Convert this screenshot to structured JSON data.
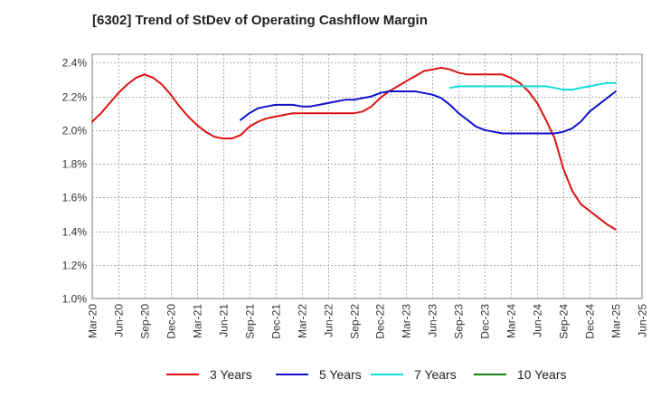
{
  "chart_data": {
    "type": "line",
    "title": "[6302]  Trend of StDev of Operating Cashflow Margin",
    "xlabel": "",
    "ylabel": "",
    "x_tick_labels": [
      "Mar-20",
      "Jun-20",
      "Sep-20",
      "Dec-20",
      "Mar-21",
      "Jun-21",
      "Sep-21",
      "Dec-21",
      "Mar-22",
      "Jun-22",
      "Sep-22",
      "Dec-22",
      "Mar-23",
      "Jun-23",
      "Sep-23",
      "Dec-23",
      "Mar-24",
      "Jun-24",
      "Sep-24",
      "Dec-24",
      "Mar-25",
      "Jun-25"
    ],
    "y_tick_labels": [
      "1.0%",
      "1.2%",
      "1.4%",
      "1.6%",
      "1.8%",
      "2.0%",
      "2.2%",
      "2.4%"
    ],
    "ylim": [
      1.0,
      2.45
    ],
    "y_ticks": [
      1.0,
      1.2,
      1.4,
      1.6,
      1.8,
      2.0,
      2.2,
      2.4
    ],
    "grid": true,
    "legend_position": "bottom",
    "series": [
      {
        "name": "3 Years",
        "color": "#dd1111",
        "points": [
          [
            "Mar-20",
            2.05
          ],
          [
            "Apr-20",
            2.1
          ],
          [
            "May-20",
            2.16
          ],
          [
            "Jun-20",
            2.22
          ],
          [
            "Jul-20",
            2.27
          ],
          [
            "Aug-20",
            2.31
          ],
          [
            "Sep-20",
            2.33
          ],
          [
            "Oct-20",
            2.31
          ],
          [
            "Nov-20",
            2.27
          ],
          [
            "Dec-20",
            2.21
          ],
          [
            "Jan-21",
            2.14
          ],
          [
            "Feb-21",
            2.08
          ],
          [
            "Mar-21",
            2.03
          ],
          [
            "Apr-21",
            1.99
          ],
          [
            "May-21",
            1.96
          ],
          [
            "Jun-21",
            1.95
          ],
          [
            "Jul-21",
            1.95
          ],
          [
            "Aug-21",
            1.97
          ],
          [
            "Sep-21",
            2.02
          ],
          [
            "Oct-21",
            2.05
          ],
          [
            "Nov-21",
            2.07
          ],
          [
            "Dec-21",
            2.08
          ],
          [
            "Jan-22",
            2.09
          ],
          [
            "Feb-22",
            2.1
          ],
          [
            "Mar-22",
            2.1
          ],
          [
            "Apr-22",
            2.1
          ],
          [
            "May-22",
            2.1
          ],
          [
            "Jun-22",
            2.1
          ],
          [
            "Jul-22",
            2.1
          ],
          [
            "Aug-22",
            2.1
          ],
          [
            "Sep-22",
            2.1
          ],
          [
            "Oct-22",
            2.11
          ],
          [
            "Nov-22",
            2.14
          ],
          [
            "Dec-22",
            2.19
          ],
          [
            "Jan-23",
            2.23
          ],
          [
            "Feb-23",
            2.26
          ],
          [
            "Mar-23",
            2.29
          ],
          [
            "Apr-23",
            2.32
          ],
          [
            "May-23",
            2.35
          ],
          [
            "Jun-23",
            2.36
          ],
          [
            "Jul-23",
            2.37
          ],
          [
            "Aug-23",
            2.36
          ],
          [
            "Sep-23",
            2.34
          ],
          [
            "Oct-23",
            2.33
          ],
          [
            "Nov-23",
            2.33
          ],
          [
            "Dec-23",
            2.33
          ],
          [
            "Jan-24",
            2.33
          ],
          [
            "Feb-24",
            2.33
          ],
          [
            "Mar-24",
            2.31
          ],
          [
            "Apr-24",
            2.28
          ],
          [
            "May-24",
            2.23
          ],
          [
            "Jun-24",
            2.16
          ],
          [
            "Jul-24",
            2.06
          ],
          [
            "Aug-24",
            1.95
          ],
          [
            "Sep-24",
            1.77
          ],
          [
            "Oct-24",
            1.64
          ],
          [
            "Nov-24",
            1.56
          ],
          [
            "Dec-24",
            1.52
          ],
          [
            "Jan-25",
            1.48
          ],
          [
            "Feb-25",
            1.44
          ],
          [
            "Mar-25",
            1.41
          ]
        ]
      },
      {
        "name": "5 Years",
        "color": "#1111cc",
        "points": [
          [
            "Aug-21",
            2.06
          ],
          [
            "Sep-21",
            2.1
          ],
          [
            "Oct-21",
            2.13
          ],
          [
            "Nov-21",
            2.14
          ],
          [
            "Dec-21",
            2.15
          ],
          [
            "Jan-22",
            2.15
          ],
          [
            "Feb-22",
            2.15
          ],
          [
            "Mar-22",
            2.14
          ],
          [
            "Apr-22",
            2.14
          ],
          [
            "May-22",
            2.15
          ],
          [
            "Jun-22",
            2.16
          ],
          [
            "Jul-22",
            2.17
          ],
          [
            "Aug-22",
            2.18
          ],
          [
            "Sep-22",
            2.18
          ],
          [
            "Oct-22",
            2.19
          ],
          [
            "Nov-22",
            2.2
          ],
          [
            "Dec-22",
            2.22
          ],
          [
            "Jan-23",
            2.23
          ],
          [
            "Feb-23",
            2.23
          ],
          [
            "Mar-23",
            2.23
          ],
          [
            "Apr-23",
            2.23
          ],
          [
            "May-23",
            2.22
          ],
          [
            "Jun-23",
            2.21
          ],
          [
            "Jul-23",
            2.19
          ],
          [
            "Aug-23",
            2.15
          ],
          [
            "Sep-23",
            2.1
          ],
          [
            "Oct-23",
            2.06
          ],
          [
            "Nov-23",
            2.02
          ],
          [
            "Dec-23",
            2.0
          ],
          [
            "Jan-24",
            1.99
          ],
          [
            "Feb-24",
            1.98
          ],
          [
            "Mar-24",
            1.98
          ],
          [
            "Apr-24",
            1.98
          ],
          [
            "May-24",
            1.98
          ],
          [
            "Jun-24",
            1.98
          ],
          [
            "Jul-24",
            1.98
          ],
          [
            "Aug-24",
            1.98
          ],
          [
            "Sep-24",
            1.99
          ],
          [
            "Oct-24",
            2.01
          ],
          [
            "Nov-24",
            2.05
          ],
          [
            "Dec-24",
            2.11
          ],
          [
            "Jan-25",
            2.15
          ],
          [
            "Feb-25",
            2.19
          ],
          [
            "Mar-25",
            2.23
          ]
        ]
      },
      {
        "name": "7 Years",
        "color": "#11dddd",
        "points": [
          [
            "Aug-23",
            2.25
          ],
          [
            "Sep-23",
            2.26
          ],
          [
            "Oct-23",
            2.26
          ],
          [
            "Nov-23",
            2.26
          ],
          [
            "Dec-23",
            2.26
          ],
          [
            "Jan-24",
            2.26
          ],
          [
            "Feb-24",
            2.26
          ],
          [
            "Mar-24",
            2.26
          ],
          [
            "Apr-24",
            2.26
          ],
          [
            "May-24",
            2.26
          ],
          [
            "Jun-24",
            2.26
          ],
          [
            "Jul-24",
            2.26
          ],
          [
            "Aug-24",
            2.25
          ],
          [
            "Sep-24",
            2.24
          ],
          [
            "Oct-24",
            2.24
          ],
          [
            "Nov-24",
            2.25
          ],
          [
            "Dec-24",
            2.26
          ],
          [
            "Jan-25",
            2.27
          ],
          [
            "Feb-25",
            2.28
          ],
          [
            "Mar-25",
            2.28
          ]
        ]
      },
      {
        "name": "10 Years",
        "color": "#118811",
        "points": []
      }
    ]
  }
}
